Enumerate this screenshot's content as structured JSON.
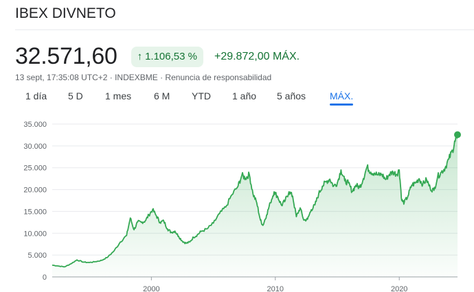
{
  "header": {
    "title": "IBEX DIVNETO",
    "price": "32.571,60",
    "percent_change": "1.106,53 %",
    "change": "+29.872,00 MÁX.",
    "meta": "13 sept, 17:35:08 UTC+2 · INDEXBME · Renuncia de responsabilidad",
    "up_color": "#137333",
    "arrow_icon": "↑"
  },
  "tabs": [
    {
      "label": "1 día"
    },
    {
      "label": "5 D"
    },
    {
      "label": "1 mes"
    },
    {
      "label": "6 M"
    },
    {
      "label": "YTD"
    },
    {
      "label": "1 año"
    },
    {
      "label": "5 años"
    },
    {
      "label": "MÁX.",
      "active": true
    }
  ],
  "chart_data": {
    "type": "area",
    "title": "",
    "xlabel": "",
    "ylabel": "",
    "ylim": [
      0,
      35000
    ],
    "xlim": [
      1992,
      2024.7
    ],
    "yticks": [
      0,
      5000,
      10000,
      15000,
      20000,
      25000,
      30000,
      35000
    ],
    "ytick_labels": [
      "0",
      "5.000",
      "10.000",
      "15.000",
      "20.000",
      "25.000",
      "30.000",
      "35.000"
    ],
    "xticks": [
      2000,
      2010,
      2020
    ],
    "xtick_labels": [
      "2000",
      "2010",
      "2020"
    ],
    "line_color": "#34a853",
    "series": [
      {
        "name": "IBEX DIVNETO",
        "x": [
          1992.0,
          1992.5,
          1993.0,
          1993.5,
          1994.0,
          1994.5,
          1995.0,
          1995.5,
          1996.0,
          1996.5,
          1997.0,
          1997.5,
          1998.0,
          1998.3,
          1998.6,
          1998.9,
          1999.2,
          1999.5,
          1999.8,
          2000.1,
          2000.4,
          2000.7,
          2001.0,
          2001.3,
          2001.6,
          2001.9,
          2002.2,
          2002.5,
          2002.8,
          2003.1,
          2003.4,
          2003.7,
          2004.0,
          2004.5,
          2005.0,
          2005.5,
          2006.0,
          2006.5,
          2007.0,
          2007.3,
          2007.6,
          2007.9,
          2008.2,
          2008.5,
          2008.8,
          2009.0,
          2009.3,
          2009.6,
          2009.9,
          2010.2,
          2010.5,
          2010.8,
          2011.1,
          2011.4,
          2011.7,
          2012.0,
          2012.3,
          2012.6,
          2012.9,
          2013.2,
          2013.5,
          2013.8,
          2014.1,
          2014.4,
          2014.7,
          2015.0,
          2015.3,
          2015.6,
          2015.9,
          2016.2,
          2016.5,
          2016.8,
          2017.1,
          2017.4,
          2017.7,
          2018.0,
          2018.3,
          2018.6,
          2018.9,
          2019.2,
          2019.5,
          2019.8,
          2020.0,
          2020.2,
          2020.4,
          2020.7,
          2021.0,
          2021.3,
          2021.6,
          2021.9,
          2022.2,
          2022.5,
          2022.8,
          2023.1,
          2023.4,
          2023.7,
          2024.0,
          2024.3,
          2024.5,
          2024.7
        ],
        "values": [
          2700,
          2500,
          2300,
          3000,
          3900,
          3400,
          3300,
          3500,
          3800,
          4600,
          6000,
          8000,
          9500,
          13500,
          10800,
          12600,
          12500,
          12800,
          14200,
          15400,
          14000,
          12500,
          12800,
          11000,
          10200,
          10500,
          9300,
          8200,
          7700,
          8000,
          9100,
          9600,
          10400,
          11000,
          12300,
          14500,
          16000,
          18800,
          20800,
          23300,
          22600,
          23500,
          19000,
          17000,
          13000,
          11800,
          14200,
          17000,
          19500,
          18300,
          16400,
          17500,
          19500,
          18500,
          13800,
          15800,
          13000,
          13200,
          15400,
          16500,
          19000,
          20800,
          21800,
          22400,
          20800,
          21500,
          24500,
          22000,
          21500,
          19600,
          21000,
          20500,
          22500,
          25200,
          24000,
          23800,
          23300,
          23500,
          22300,
          23500,
          24000,
          23500,
          24500,
          17500,
          17000,
          18500,
          21000,
          21500,
          22500,
          21200,
          22300,
          20300,
          19800,
          23000,
          24000,
          25000,
          27000,
          29000,
          31000,
          32570
        ]
      }
    ]
  }
}
